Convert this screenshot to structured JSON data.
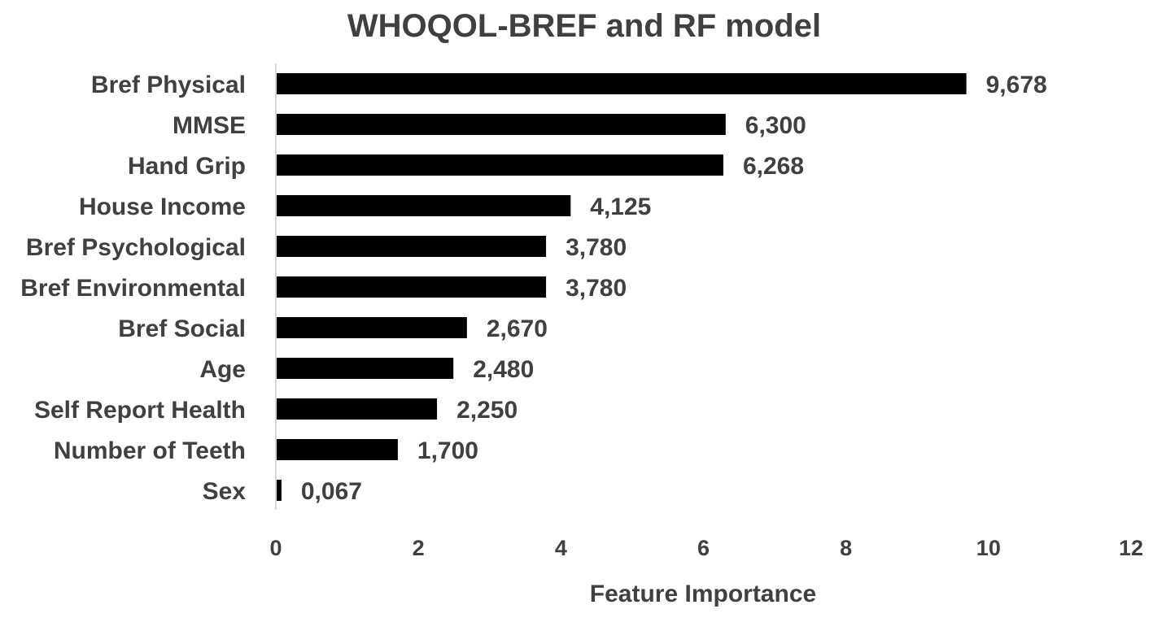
{
  "chart_data": {
    "type": "bar",
    "orientation": "horizontal",
    "title": "WHOQOL-BREF and RF model",
    "xlabel": "Feature Importance",
    "ylabel": "",
    "categories": [
      "Bref Physical",
      "MMSE",
      "Hand Grip",
      "House Income",
      "Bref Psychological",
      "Bref Environmental",
      "Bref Social",
      "Age",
      "Self Report Health",
      "Number of Teeth",
      "Sex"
    ],
    "values": [
      9.678,
      6.3,
      6.268,
      4.125,
      3.78,
      3.78,
      2.67,
      2.48,
      2.25,
      1.7,
      0.067
    ],
    "data_labels": [
      "9,678",
      "6,300",
      "6,268",
      "4,125",
      "3,780",
      "3,780",
      "2,670",
      "2,480",
      "2,250",
      "1,700",
      "0,067"
    ],
    "xlim": [
      0,
      12
    ],
    "xticks": [
      "0",
      "2",
      "4",
      "6",
      "8",
      "10",
      "12"
    ],
    "grid": false,
    "legend": "none",
    "colors": {
      "bar": "#000000",
      "text": "#404040",
      "axis": "#d9d9d9"
    }
  }
}
